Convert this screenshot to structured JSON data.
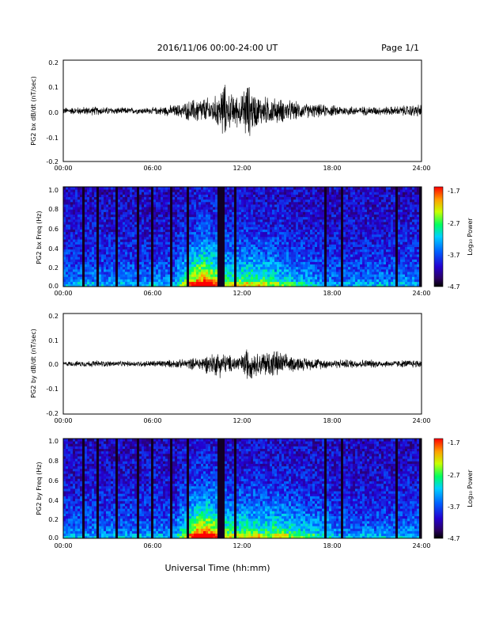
{
  "header": {
    "date_range": "2016/11/06  00:00-24:00 UT",
    "page": "Page 1/1"
  },
  "x_axis": {
    "title": "Universal Time (hh:mm)",
    "tick_labels": [
      "00:00",
      "06:00",
      "12:00",
      "18:00",
      "24:00"
    ],
    "range_hours": [
      0,
      24
    ]
  },
  "colorbar": {
    "label": "Log₁₀ Power",
    "tick_labels": [
      "-1.7",
      "-2.7",
      "-3.7",
      "-4.7"
    ],
    "range": [
      -4.7,
      -1.7
    ]
  },
  "chart_data": [
    {
      "type": "line",
      "ylabel": "PG2 bx dB/dt (nT/sec)",
      "ylim": [
        -0.2,
        0.2
      ],
      "y_tick_labels": [
        "0.2",
        "0.1",
        "0.0",
        "-0.1",
        "-0.2"
      ],
      "x_unit": "hours UT",
      "series": [
        {
          "x": [
            0,
            2,
            4,
            6,
            7.8,
            9,
            10,
            10.5,
            10.7,
            11,
            12,
            12.2,
            13,
            14,
            15,
            16,
            18,
            20,
            22,
            23.9
          ],
          "y": [
            0.015,
            0.02,
            0.015,
            0.015,
            0.03,
            0.06,
            0.06,
            0.08,
            0.15,
            0.08,
            0.07,
            0.14,
            0.07,
            0.06,
            0.05,
            0.035,
            0.025,
            0.02,
            0.02,
            0.03
          ]
        }
      ]
    },
    {
      "type": "heatmap",
      "ylabel": "PG2 bx Freq (Hz)",
      "ylim": [
        0,
        1
      ],
      "y_tick_labels": [
        "1.0",
        "0.8",
        "0.6",
        "0.4",
        "0.2",
        "0.0"
      ],
      "value_range": [
        -4.7,
        -1.7
      ]
    },
    {
      "type": "line",
      "ylabel": "PG2 by dB/dt (nT/sec)",
      "ylim": [
        -0.2,
        0.2
      ],
      "y_tick_labels": [
        "0.2",
        "0.1",
        "0.0",
        "-0.1",
        "-0.2"
      ],
      "x_unit": "hours UT",
      "series": [
        {
          "x": [
            0,
            2,
            4,
            6,
            8,
            9,
            10,
            10.5,
            11,
            12,
            12.2,
            13,
            14,
            15,
            16,
            18,
            20,
            22,
            23.9
          ],
          "y": [
            0.01,
            0.015,
            0.012,
            0.015,
            0.02,
            0.03,
            0.05,
            0.06,
            0.04,
            0.04,
            0.08,
            0.05,
            0.07,
            0.04,
            0.03,
            0.02,
            0.02,
            0.015,
            0.02
          ]
        }
      ]
    },
    {
      "type": "heatmap",
      "ylabel": "PG2 by Freq (Hz)",
      "ylim": [
        0,
        1
      ],
      "y_tick_labels": [
        "1.0",
        "0.8",
        "0.6",
        "0.4",
        "0.2",
        "0.0"
      ],
      "value_range": [
        -4.7,
        -1.7
      ]
    }
  ]
}
